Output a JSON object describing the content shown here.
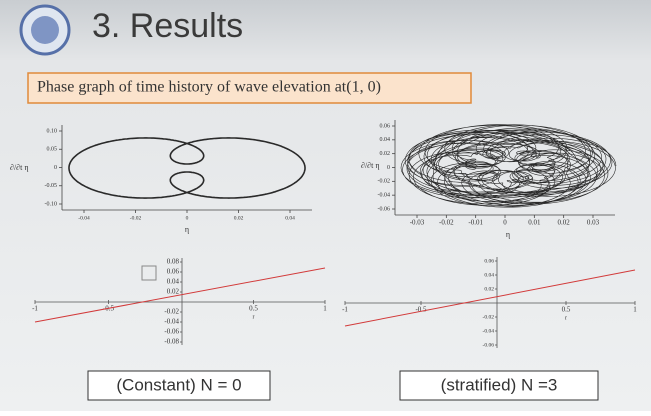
{
  "title": "3. Results",
  "subtitle": "Phase graph of time history of wave elevation at(1, 0)",
  "phase_plots": [
    {
      "ylabel": "∂/∂t η",
      "xlabel": "η",
      "yticks": [
        "0.10",
        "0.05",
        "0",
        "-0.05",
        "-0.10"
      ],
      "xticks": [
        "-0.04",
        "-0.02",
        "0",
        "0.02",
        "0.04"
      ]
    },
    {
      "ylabel": "∂/∂t η",
      "xlabel": "η",
      "yticks": [
        "0.06",
        "0.04",
        "0.02",
        "0",
        "-0.02",
        "-0.04",
        "-0.06"
      ],
      "xticks": [
        "-0.03",
        "-0.02",
        "-0.01",
        "0",
        "0.01",
        "0.02",
        "0.03"
      ]
    }
  ],
  "line_plots": [
    {
      "xlabel": "r",
      "xticks": [
        "-1",
        "-0.5",
        "0.5",
        "1"
      ],
      "yticks_upper": [
        "0.08",
        "0.06",
        "0.04",
        "0.02"
      ],
      "yticks_lower": [
        "-0.02",
        "-0.04",
        "-0.06",
        "-0.08"
      ]
    },
    {
      "xlabel": "r",
      "xticks": [
        "-1",
        "-0.5",
        "0.5",
        "1"
      ],
      "yticks_upper": [
        "0.06",
        "0.04",
        "0.02"
      ],
      "yticks_lower": [
        "-0.02",
        "-0.04",
        "-0.06"
      ]
    }
  ],
  "captions": [
    "(Constant) N = 0",
    "(stratified) N =3"
  ]
}
